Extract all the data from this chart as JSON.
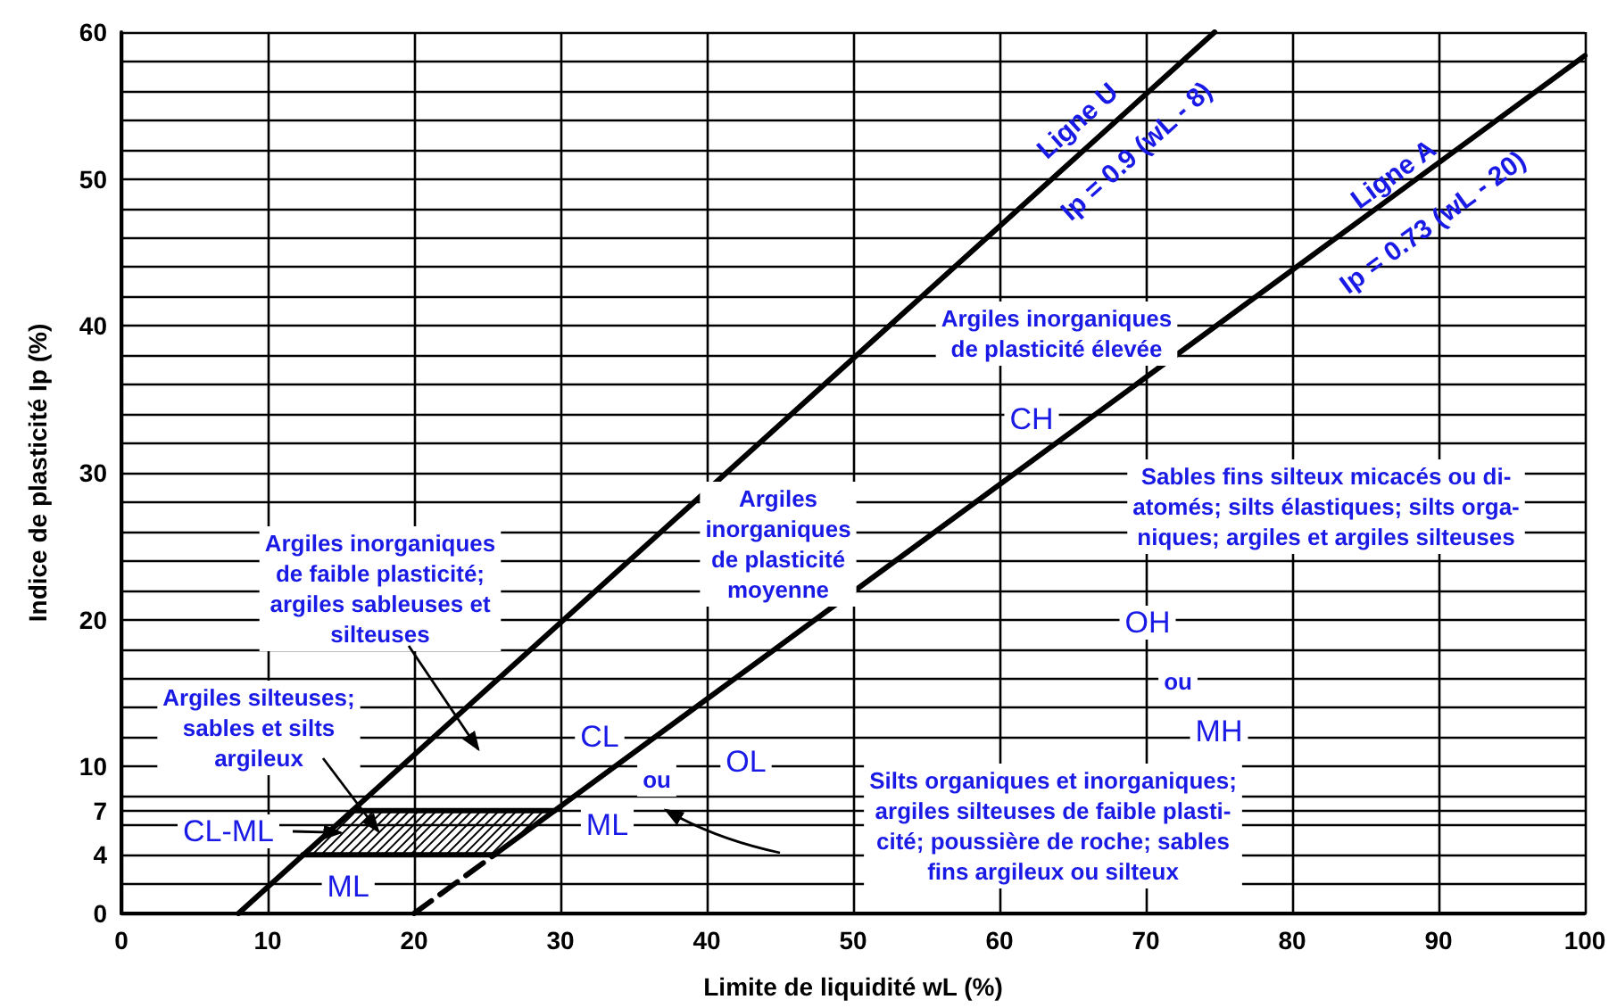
{
  "chart_data": {
    "type": "line",
    "xlabel": "Limite de liquidité wL (%)",
    "ylabel": "Indice de plasticité Ip (%)",
    "xlim": [
      0,
      100
    ],
    "ylim": [
      0,
      60
    ],
    "xticks": [
      0,
      10,
      20,
      30,
      40,
      50,
      60,
      70,
      80,
      90,
      100
    ],
    "yticks": [
      0,
      {
        "value": 2,
        "label": null
      },
      4,
      {
        "value": 6,
        "label": null
      },
      7,
      {
        "value": 8,
        "label": null
      },
      10,
      {
        "value": 12,
        "label": null
      },
      {
        "value": 14,
        "label": null
      },
      {
        "value": 16,
        "label": null
      },
      {
        "value": 18,
        "label": null
      },
      20,
      {
        "value": 22,
        "label": null
      },
      {
        "value": 24,
        "label": null
      },
      {
        "value": 26,
        "label": null
      },
      {
        "value": 28,
        "label": null
      },
      30,
      {
        "value": 32,
        "label": null
      },
      {
        "value": 34,
        "label": null
      },
      {
        "value": 36,
        "label": null
      },
      {
        "value": 38,
        "label": null
      },
      40,
      {
        "value": 42,
        "label": null
      },
      {
        "value": 44,
        "label": null
      },
      {
        "value": 46,
        "label": null
      },
      {
        "value": 48,
        "label": null
      },
      50,
      {
        "value": 52,
        "label": null
      },
      {
        "value": 54,
        "label": null
      },
      {
        "value": 56,
        "label": null
      },
      {
        "value": 58,
        "label": null
      },
      60
    ],
    "grid": true,
    "marker": "none",
    "series": [
      {
        "color": "#000000",
        "x": [
          8,
          74.7
        ],
        "values": [
          0,
          60
        ]
      },
      {
        "color": "#000000",
        "x": [
          25.5,
          100
        ],
        "values": [
          4,
          58.4
        ]
      },
      {
        "color": "#000000",
        "x": [
          20,
          25.5
        ],
        "values": [
          0,
          4
        ],
        "line_style": "dashed"
      },
      {
        "color": "#000000",
        "x": [
          15.8,
          29.6
        ],
        "values": [
          7,
          7
        ]
      },
      {
        "color": "#000000",
        "x": [
          12.4,
          25.5
        ],
        "values": [
          4,
          4
        ]
      }
    ],
    "annotations": [
      "Ligne U",
      "Ip = 0.9 (wL - 8)",
      "Ligne A",
      "Ip = 0.73 (wL - 20)",
      "Argiles inorganiques\nde plasticité élevée",
      "CH",
      "Sables fins silteux micacés ou di-\natomés; silts élastiques; silts orga-\nniques; argiles et argiles silteuses",
      "Argiles\ninorganiques\nde plasticité\nmoyenne",
      "Argiles inorganiques\nde faible plasticité;\nargiles sableuses et\nsilteuses",
      "OH",
      "ou",
      "MH",
      "Argiles silteuses;\nsables et silts\nargileux",
      "CL",
      "ou",
      "OL",
      {
        "text": "ML",
        "x": 33.2,
        "y": 6
      },
      {
        "text": "CL-ML",
        "x": 15,
        "y": 5.5
      },
      {
        "text": "ML",
        "x": 15.5,
        "y": 1.8
      },
      "Silts organiques et inorganiques;\nargiles silteuses de faible plasti-\ncité; poussière de roche; sables\nfins argileux ou silteux"
    ]
  }
}
